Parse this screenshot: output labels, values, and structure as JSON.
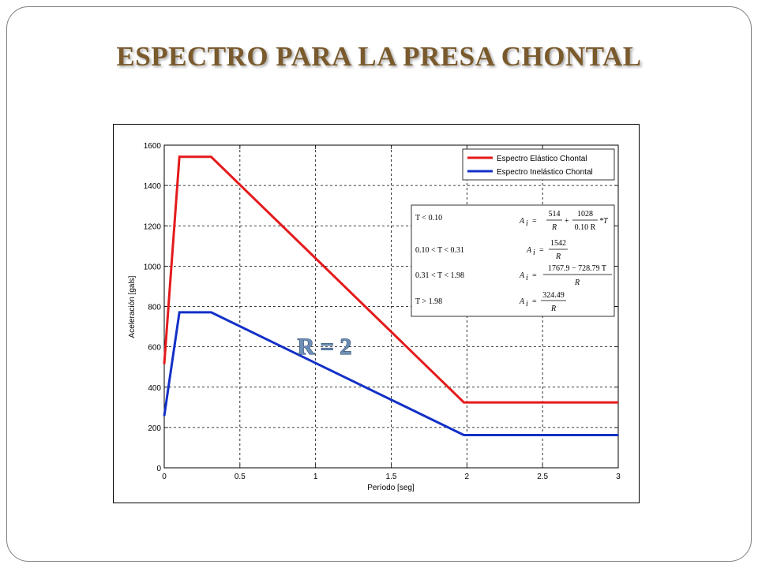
{
  "slide": {
    "title": "ESPECTRO PARA LA PRESA CHONTAL"
  },
  "chart_data": {
    "type": "line",
    "xlabel": "Período [seg]",
    "ylabel": "Aceleración [gals]",
    "xlim": [
      0,
      3
    ],
    "ylim": [
      0,
      1600
    ],
    "x_ticks": [
      "0",
      "0.5",
      "1",
      "1.5",
      "2",
      "2.5",
      "3"
    ],
    "y_ticks": [
      "0",
      "200",
      "400",
      "600",
      "800",
      "1000",
      "1200",
      "1400",
      "1600"
    ],
    "grid": true,
    "legend_position": "top-right",
    "series": [
      {
        "name": "Espectro Elástico Chontal",
        "color": "#e41a1c",
        "x": [
          0,
          0.1,
          0.31,
          1.98,
          3.0
        ],
        "y": [
          514,
          1542,
          1542,
          324.49,
          324.49
        ]
      },
      {
        "name": "Espectro Inelástico Chontal",
        "color": "#1330c8",
        "x": [
          0,
          0.1,
          0.31,
          1.98,
          3.0
        ],
        "y": [
          257,
          771,
          771,
          162.25,
          162.25
        ]
      }
    ],
    "annotation": "R = 2",
    "equations": [
      {
        "condition": "T < 0.10",
        "numerator_a": "514",
        "denominator_a": "R",
        "plus": "+",
        "numerator_b": "1028",
        "denominator_b": "0.10 R",
        "suffix": "*T"
      },
      {
        "condition": "0.10 < T < 0.31",
        "numerator": "1542",
        "denominator": "R"
      },
      {
        "condition": "0.31 < T < 1.98",
        "numerator": "1767.9 − 728.79 T",
        "denominator": "R"
      },
      {
        "condition": "T > 1.98",
        "numerator": "324.49",
        "denominator": "R"
      }
    ],
    "equation_symbol": "A",
    "equation_subscript": "i",
    "equals_sign": "="
  }
}
